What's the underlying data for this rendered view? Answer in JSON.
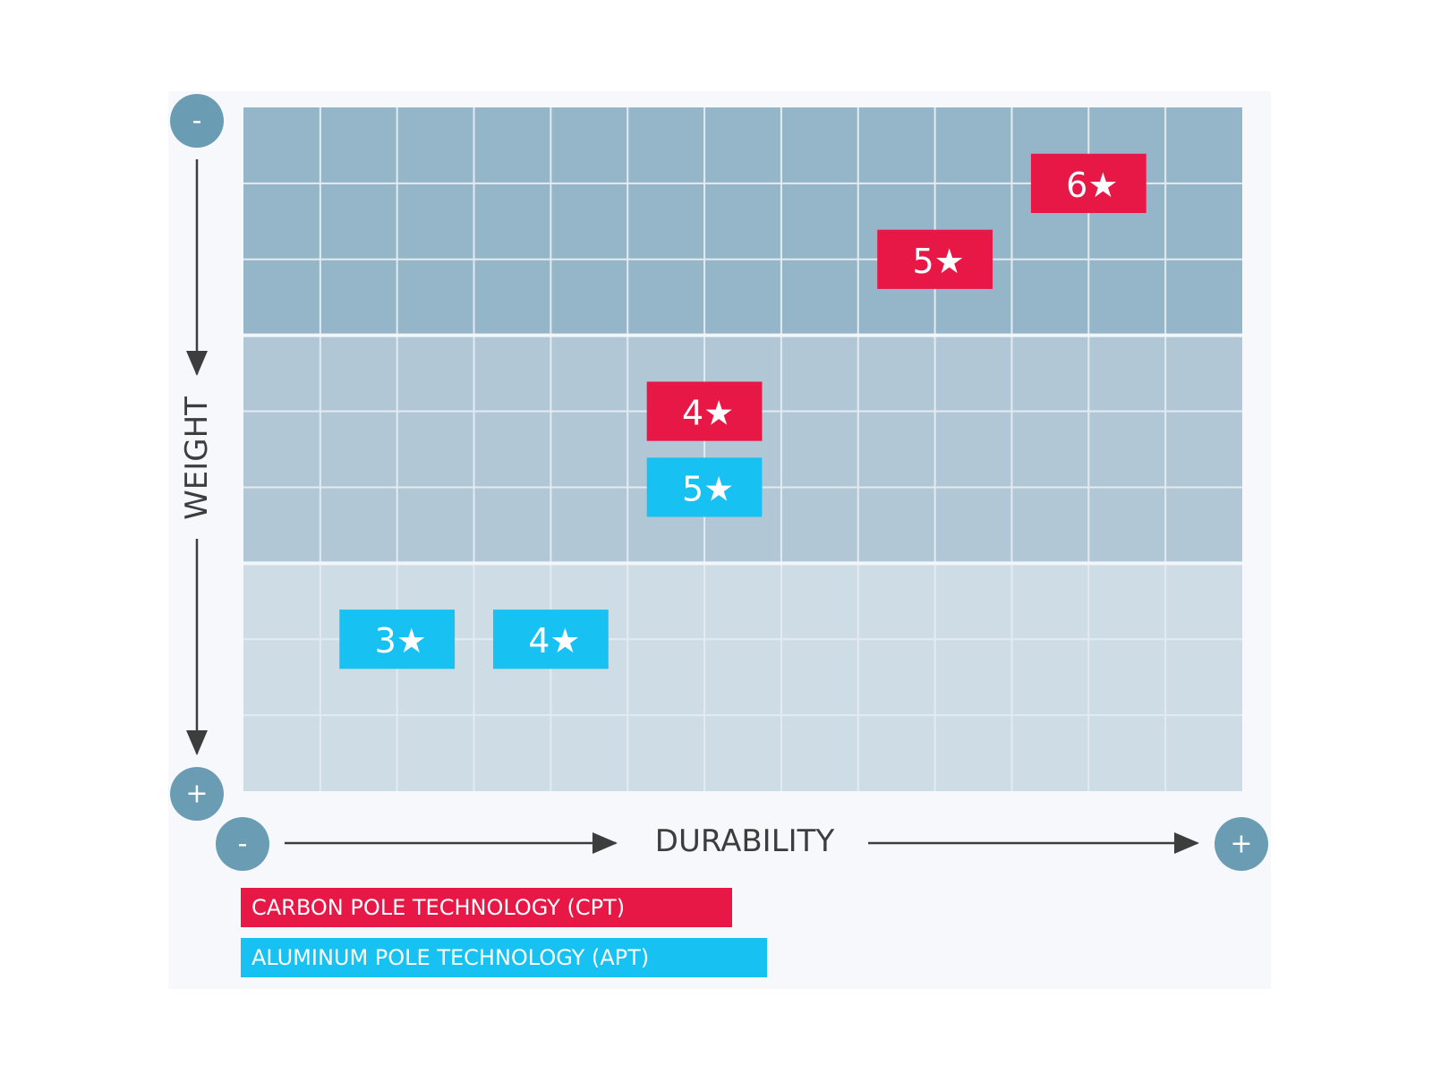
{
  "chart_data": {
    "type": "scatter",
    "title": "",
    "xlabel": "DURABILITY",
    "ylabel": "WEIGHT",
    "x_axis": {
      "min_label": "-",
      "max_label": "+"
    },
    "y_axis": {
      "min_label": "-",
      "max_label": "+",
      "direction": "top-to-bottom"
    },
    "grid": {
      "columns": 13,
      "rows": 9,
      "bands": 3
    },
    "colors": {
      "band_top": "#95b6c8",
      "band_mid": "#b1c7d5",
      "band_bottom": "#cedce6",
      "grid_line": "#e3ebf1",
      "axis_circle": "#6a9db4",
      "arrow": "#3d3d3d",
      "label": "#3d3d3d"
    },
    "series": [
      {
        "name": "CARBON POLE TECHNOLOGY (CPT)",
        "color": "#e81846",
        "points": [
          {
            "label": "6★",
            "x": 11.0,
            "y": 1.0
          },
          {
            "label": "5★",
            "x": 9.0,
            "y": 2.0
          },
          {
            "label": "4★",
            "x": 6.0,
            "y": 4.0
          }
        ]
      },
      {
        "name": "ALUMINUM POLE TECHNOLOGY (APT)",
        "color": "#17c1f1",
        "points": [
          {
            "label": "5★",
            "x": 6.0,
            "y": 5.0
          },
          {
            "label": "3★",
            "x": 2.0,
            "y": 7.0
          },
          {
            "label": "4★",
            "x": 4.0,
            "y": 7.0
          }
        ]
      }
    ],
    "legend": {
      "position": "bottom-left"
    }
  }
}
